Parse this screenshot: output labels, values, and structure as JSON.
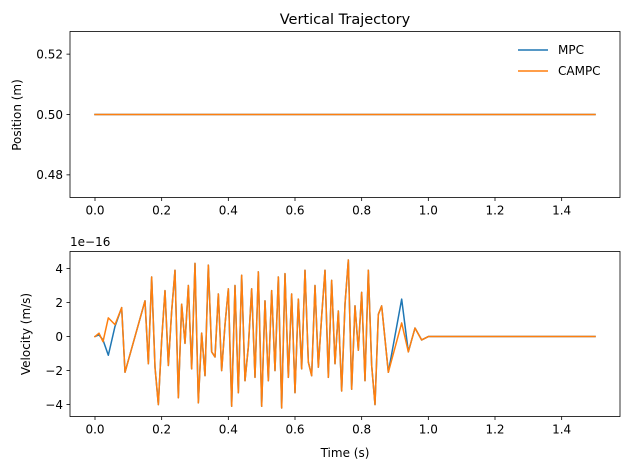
{
  "chart_data": [
    {
      "type": "line",
      "title": "Vertical Trajectory",
      "xlabel": "",
      "ylabel": "Position (m)",
      "xlim": [
        -0.075,
        1.575
      ],
      "ylim": [
        0.4725,
        0.5275
      ],
      "xticks": [
        "0.0",
        "0.2",
        "0.4",
        "0.6",
        "0.8",
        "1.0",
        "1.2",
        "1.4"
      ],
      "xtick_values": [
        0,
        0.2,
        0.4,
        0.6,
        0.8,
        1.0,
        1.2,
        1.4
      ],
      "yticks": [
        "0.48",
        "0.50",
        "0.52"
      ],
      "ytick_values": [
        0.48,
        0.5,
        0.52
      ],
      "legend": "top-right",
      "grid": false,
      "series": [
        {
          "name": "MPC",
          "color": "#1f77b4",
          "x": [
            0,
            1.5
          ],
          "y": [
            0.5,
            0.5
          ]
        },
        {
          "name": "CAMPC",
          "color": "#ff7f0e",
          "x": [
            0,
            1.5
          ],
          "y": [
            0.5,
            0.5
          ]
        }
      ]
    },
    {
      "type": "line",
      "title": "",
      "xlabel": "Time (s)",
      "ylabel": "Velocity (m/s)",
      "offset_text": "1e−16",
      "xlim": [
        -0.075,
        1.575
      ],
      "ylim": [
        -4.7,
        5.0
      ],
      "xticks": [
        "0.0",
        "0.2",
        "0.4",
        "0.6",
        "0.8",
        "1.0",
        "1.2",
        "1.4"
      ],
      "xtick_values": [
        0,
        0.2,
        0.4,
        0.6,
        0.8,
        1.0,
        1.2,
        1.4
      ],
      "yticks": [
        "−4",
        "−2",
        "0",
        "2",
        "4"
      ],
      "ytick_values": [
        -4,
        -2,
        0,
        2,
        4
      ],
      "legend": "none",
      "grid": false,
      "series": [
        {
          "name": "MPC",
          "color": "#1f77b4",
          "x": [
            0,
            0.012,
            0.024,
            0.04,
            0.06,
            0.08,
            0.09,
            0.15,
            0.16,
            0.17,
            0.18,
            0.19,
            0.2,
            0.21,
            0.22,
            0.23,
            0.24,
            0.25,
            0.26,
            0.27,
            0.28,
            0.29,
            0.3,
            0.31,
            0.32,
            0.33,
            0.34,
            0.35,
            0.36,
            0.37,
            0.38,
            0.39,
            0.4,
            0.41,
            0.42,
            0.43,
            0.44,
            0.45,
            0.46,
            0.47,
            0.48,
            0.49,
            0.5,
            0.51,
            0.52,
            0.53,
            0.54,
            0.55,
            0.56,
            0.57,
            0.58,
            0.59,
            0.6,
            0.61,
            0.62,
            0.63,
            0.64,
            0.65,
            0.66,
            0.67,
            0.68,
            0.69,
            0.7,
            0.71,
            0.72,
            0.73,
            0.74,
            0.75,
            0.76,
            0.77,
            0.78,
            0.79,
            0.8,
            0.81,
            0.82,
            0.83,
            0.84,
            0.85,
            0.86,
            0.88,
            0.92,
            0.94,
            0.96,
            0.98,
            1.0,
            1.5
          ],
          "y": [
            0,
            0.1,
            -0.2,
            -1.1,
            0.6,
            1.7,
            -2.1,
            2.1,
            -1.6,
            3.5,
            -1.8,
            -4.0,
            -0.2,
            2.7,
            -1.7,
            1.5,
            3.9,
            -3.6,
            1.9,
            -0.4,
            3.0,
            -1.9,
            4.3,
            -3.9,
            0.2,
            -2.3,
            4.2,
            -0.9,
            -1.2,
            2.5,
            -2.0,
            0.7,
            2.8,
            -4.1,
            3.0,
            -3.3,
            3.6,
            -2.6,
            -0.6,
            2.8,
            -2.4,
            3.8,
            -4.1,
            2.1,
            -2.6,
            2.7,
            -2.0,
            3.5,
            -4.2,
            3.7,
            -2.4,
            2.5,
            -3.3,
            2.2,
            -1.9,
            3.9,
            -1.5,
            -2.3,
            3.0,
            -1.8,
            1.2,
            3.9,
            -2.4,
            3.3,
            -1.6,
            1.5,
            -3.2,
            1.9,
            4.5,
            -3.1,
            1.8,
            -0.8,
            2.6,
            -2.6,
            3.9,
            -1.7,
            -4.0,
            1.3,
            1.8,
            -2.1,
            2.2,
            -0.9,
            0.5,
            -0.2,
            0,
            0
          ]
        },
        {
          "name": "CAMPC",
          "color": "#ff7f0e",
          "x": [
            0,
            0.012,
            0.024,
            0.04,
            0.06,
            0.08,
            0.09,
            0.15,
            0.16,
            0.17,
            0.18,
            0.19,
            0.2,
            0.21,
            0.22,
            0.23,
            0.24,
            0.25,
            0.26,
            0.27,
            0.28,
            0.29,
            0.3,
            0.31,
            0.32,
            0.33,
            0.34,
            0.35,
            0.36,
            0.37,
            0.38,
            0.39,
            0.4,
            0.41,
            0.42,
            0.43,
            0.44,
            0.45,
            0.46,
            0.47,
            0.48,
            0.49,
            0.5,
            0.51,
            0.52,
            0.53,
            0.54,
            0.55,
            0.56,
            0.57,
            0.58,
            0.59,
            0.6,
            0.61,
            0.62,
            0.63,
            0.64,
            0.65,
            0.66,
            0.67,
            0.68,
            0.69,
            0.7,
            0.71,
            0.72,
            0.73,
            0.74,
            0.75,
            0.76,
            0.77,
            0.78,
            0.79,
            0.8,
            0.81,
            0.82,
            0.83,
            0.84,
            0.85,
            0.86,
            0.88,
            0.92,
            0.94,
            0.96,
            0.98,
            1.0,
            1.5
          ],
          "y": [
            0,
            0.2,
            -0.3,
            1.1,
            0.7,
            1.7,
            -2.1,
            2.1,
            -1.6,
            3.5,
            -1.8,
            -4.0,
            -0.2,
            2.7,
            -1.7,
            1.5,
            3.9,
            -3.6,
            1.9,
            -0.4,
            3.0,
            -1.9,
            4.3,
            -3.9,
            0.2,
            -2.3,
            4.2,
            -0.9,
            -1.2,
            2.5,
            -2.0,
            0.7,
            2.8,
            -4.1,
            3.0,
            -3.3,
            3.6,
            -2.6,
            -0.6,
            2.8,
            -2.4,
            3.8,
            -4.1,
            2.1,
            -2.6,
            2.7,
            -2.0,
            3.5,
            -4.2,
            3.7,
            -2.4,
            2.5,
            -3.3,
            2.2,
            -1.9,
            3.9,
            -1.5,
            -2.3,
            3.0,
            -1.8,
            1.2,
            3.9,
            -2.4,
            3.3,
            -1.6,
            1.5,
            -3.2,
            1.9,
            4.5,
            -3.1,
            1.8,
            -0.8,
            2.6,
            -2.6,
            3.9,
            -1.7,
            -4.0,
            1.3,
            1.8,
            -2.1,
            0.8,
            -0.9,
            0.5,
            -0.2,
            0,
            0
          ]
        }
      ]
    }
  ]
}
